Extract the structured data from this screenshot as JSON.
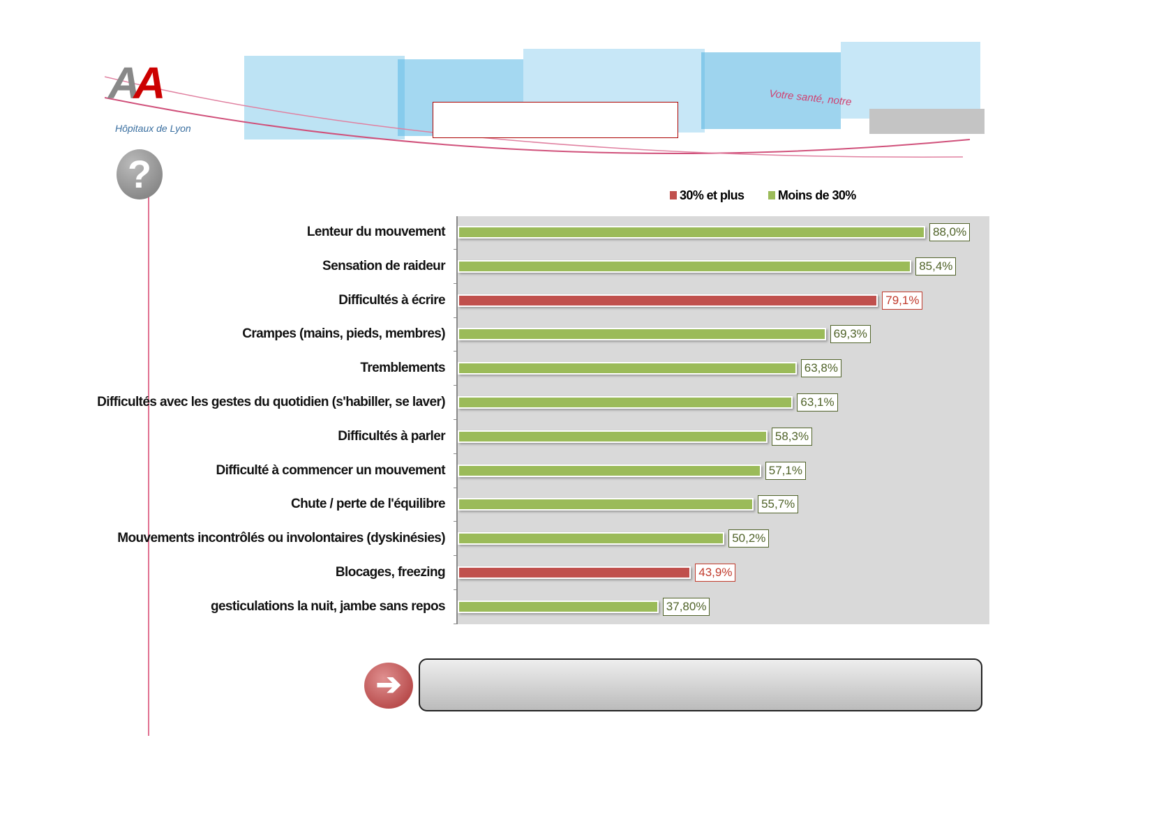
{
  "header": {
    "logo_text": "AA",
    "logo_caption": "Hôpitaux de Lyon",
    "slogan": "Votre santé, notre"
  },
  "chart_data": {
    "type": "bar",
    "orientation": "horizontal",
    "legend": [
      {
        "label": "30% et plus",
        "color": "#c0504d"
      },
      {
        "label": "Moins de 30%",
        "color": "#9bbb59"
      }
    ],
    "legend_position": "top-right",
    "categories": [
      "Lenteur du mouvement",
      "Sensation de raideur",
      "Difficultés à écrire",
      "Crampes (mains, pieds, membres)",
      "Tremblements",
      "Difficultés avec les gestes du quotidien (s'habiller, se laver)",
      "Difficultés à parler",
      "Difficulté à commencer un mouvement",
      "Chute / perte de l'équilibre",
      "Mouvements incontrôlés ou involontaires (dyskinésies)",
      "Blocages, freezing",
      "gesticulations la nuit, jambe sans repos"
    ],
    "values": [
      88.0,
      85.4,
      79.1,
      69.3,
      63.8,
      63.1,
      58.3,
      57.1,
      55.7,
      50.2,
      43.9,
      37.8
    ],
    "labels": [
      "88,0%",
      "85,4%",
      "79,1%",
      "69,3%",
      "63,8%",
      "63,1%",
      "58,3%",
      "57,1%",
      "55,7%",
      "50,2%",
      "43,9%",
      "37,80%"
    ],
    "groups": [
      "green",
      "green",
      "red",
      "green",
      "green",
      "green",
      "green",
      "green",
      "green",
      "green",
      "red",
      "green"
    ],
    "xlim": [
      0,
      100
    ],
    "grid": false
  }
}
